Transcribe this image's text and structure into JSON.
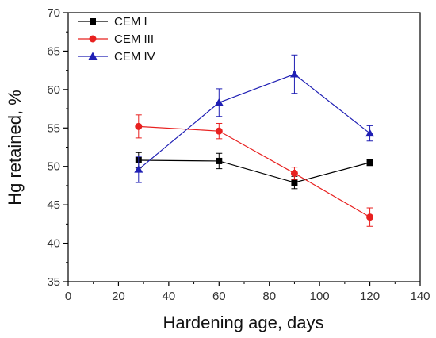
{
  "chart_data": {
    "type": "line",
    "xlabel": "Hardening age, days",
    "ylabel": "Hg retained, %",
    "xlim": [
      0,
      140
    ],
    "ylim": [
      35,
      70
    ],
    "xticks": [
      0,
      20,
      40,
      60,
      80,
      100,
      120,
      140
    ],
    "yticks": [
      35,
      40,
      45,
      50,
      55,
      60,
      65,
      70
    ],
    "grid": false,
    "legend_position": "top-left",
    "x": [
      28,
      60,
      90,
      120
    ],
    "series": [
      {
        "name": "CEM I",
        "color": "#000000",
        "marker": "square",
        "values": [
          50.8,
          50.7,
          47.9,
          50.5
        ],
        "errors": [
          1.0,
          1.0,
          0.8,
          0.4
        ]
      },
      {
        "name": "CEM III",
        "color": "#e8201f",
        "marker": "circle",
        "values": [
          55.2,
          54.6,
          49.1,
          43.4
        ],
        "errors": [
          1.5,
          1.0,
          0.8,
          1.2
        ]
      },
      {
        "name": "CEM IV",
        "color": "#1f1fb4",
        "marker": "triangle",
        "values": [
          49.6,
          58.3,
          62.0,
          54.3
        ],
        "errors": [
          1.7,
          1.8,
          2.5,
          1.0
        ]
      }
    ]
  }
}
